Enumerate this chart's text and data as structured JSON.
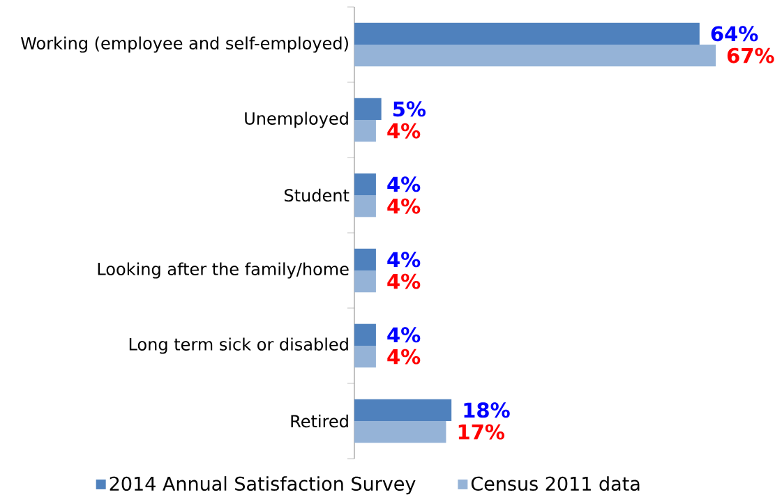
{
  "chart_data": {
    "type": "bar",
    "orientation": "horizontal",
    "categories": [
      "Working (employee and self-employed)",
      "Unemployed",
      "Student",
      "Looking after the family/home",
      "Long term sick or disabled",
      "Retired"
    ],
    "series": [
      {
        "name": "2014 Annual Satisfaction Survey",
        "color": "#4f81bd",
        "values": [
          64,
          5,
          4,
          4,
          4,
          18
        ],
        "value_labels": [
          "64%",
          "5%",
          "4%",
          "4%",
          "4%",
          "18%"
        ]
      },
      {
        "name": "Census 2011 data",
        "color": "#95b3d7",
        "values": [
          67,
          4,
          4,
          4,
          4,
          17
        ],
        "value_labels": [
          "67%",
          "4%",
          "4%",
          "4%",
          "4%",
          "17%"
        ]
      }
    ],
    "tick_labels": "y",
    "legend": "bottom"
  }
}
